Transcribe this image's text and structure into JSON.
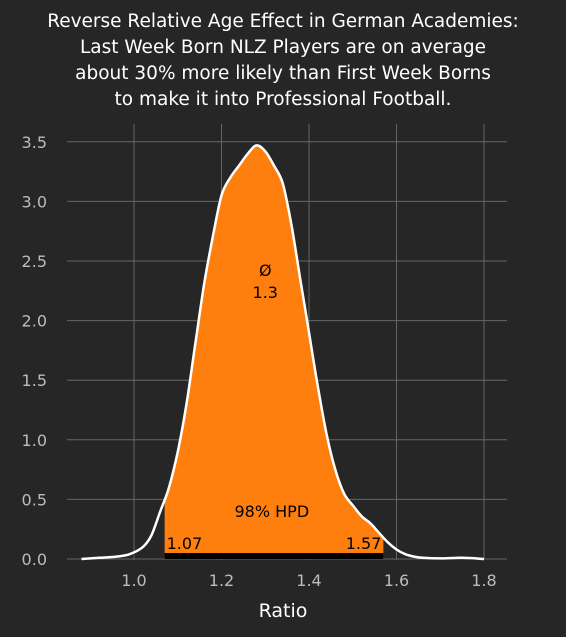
{
  "chart_data": {
    "type": "area",
    "title_lines": [
      "Reverse Relative Age Effect in German Academies:",
      "Last Week Born NLZ Players are on average",
      "about 30% more likely than First Week Borns",
      "to make it into Professional Football."
    ],
    "xlabel": "Ratio",
    "ylabel": "",
    "xlim": [
      0.85,
      1.85
    ],
    "ylim": [
      0,
      3.6
    ],
    "x_ticks": [
      "1.0",
      "1.2",
      "1.4",
      "1.6",
      "1.8"
    ],
    "x_tick_values": [
      1.0,
      1.2,
      1.4,
      1.6,
      1.8
    ],
    "y_ticks": [
      "0.0",
      "0.5",
      "1.0",
      "1.5",
      "2.0",
      "2.5",
      "3.0",
      "3.5"
    ],
    "y_tick_values": [
      0.0,
      0.5,
      1.0,
      1.5,
      2.0,
      2.5,
      3.0,
      3.5
    ],
    "grid": true,
    "density": {
      "x": [
        0.88,
        0.92,
        0.96,
        0.99,
        1.02,
        1.04,
        1.06,
        1.08,
        1.1,
        1.12,
        1.14,
        1.16,
        1.18,
        1.2,
        1.22,
        1.24,
        1.26,
        1.28,
        1.3,
        1.32,
        1.34,
        1.36,
        1.38,
        1.4,
        1.42,
        1.44,
        1.46,
        1.48,
        1.5,
        1.52,
        1.54,
        1.56,
        1.58,
        1.6,
        1.62,
        1.64,
        1.66,
        1.7,
        1.75,
        1.8
      ],
      "y": [
        0.0,
        0.01,
        0.02,
        0.04,
        0.1,
        0.2,
        0.4,
        0.6,
        0.9,
        1.3,
        1.8,
        2.3,
        2.7,
        3.05,
        3.2,
        3.3,
        3.4,
        3.47,
        3.42,
        3.3,
        3.15,
        2.8,
        2.35,
        1.9,
        1.45,
        1.05,
        0.75,
        0.55,
        0.45,
        0.36,
        0.3,
        0.22,
        0.14,
        0.08,
        0.04,
        0.02,
        0.01,
        0.005,
        0.01,
        0.0
      ]
    },
    "hpd": {
      "label": "98% HPD",
      "low": 1.07,
      "high": 1.57,
      "low_label": "1.07",
      "high_label": "1.57"
    },
    "mean": {
      "label": "Ø",
      "value": "1.3"
    },
    "colors": {
      "background": "#262626",
      "fill": "#ff7f0e",
      "line": "#ffffff",
      "grid": "#666666",
      "tick": "#bcbcbc",
      "bar": "#000000"
    }
  }
}
